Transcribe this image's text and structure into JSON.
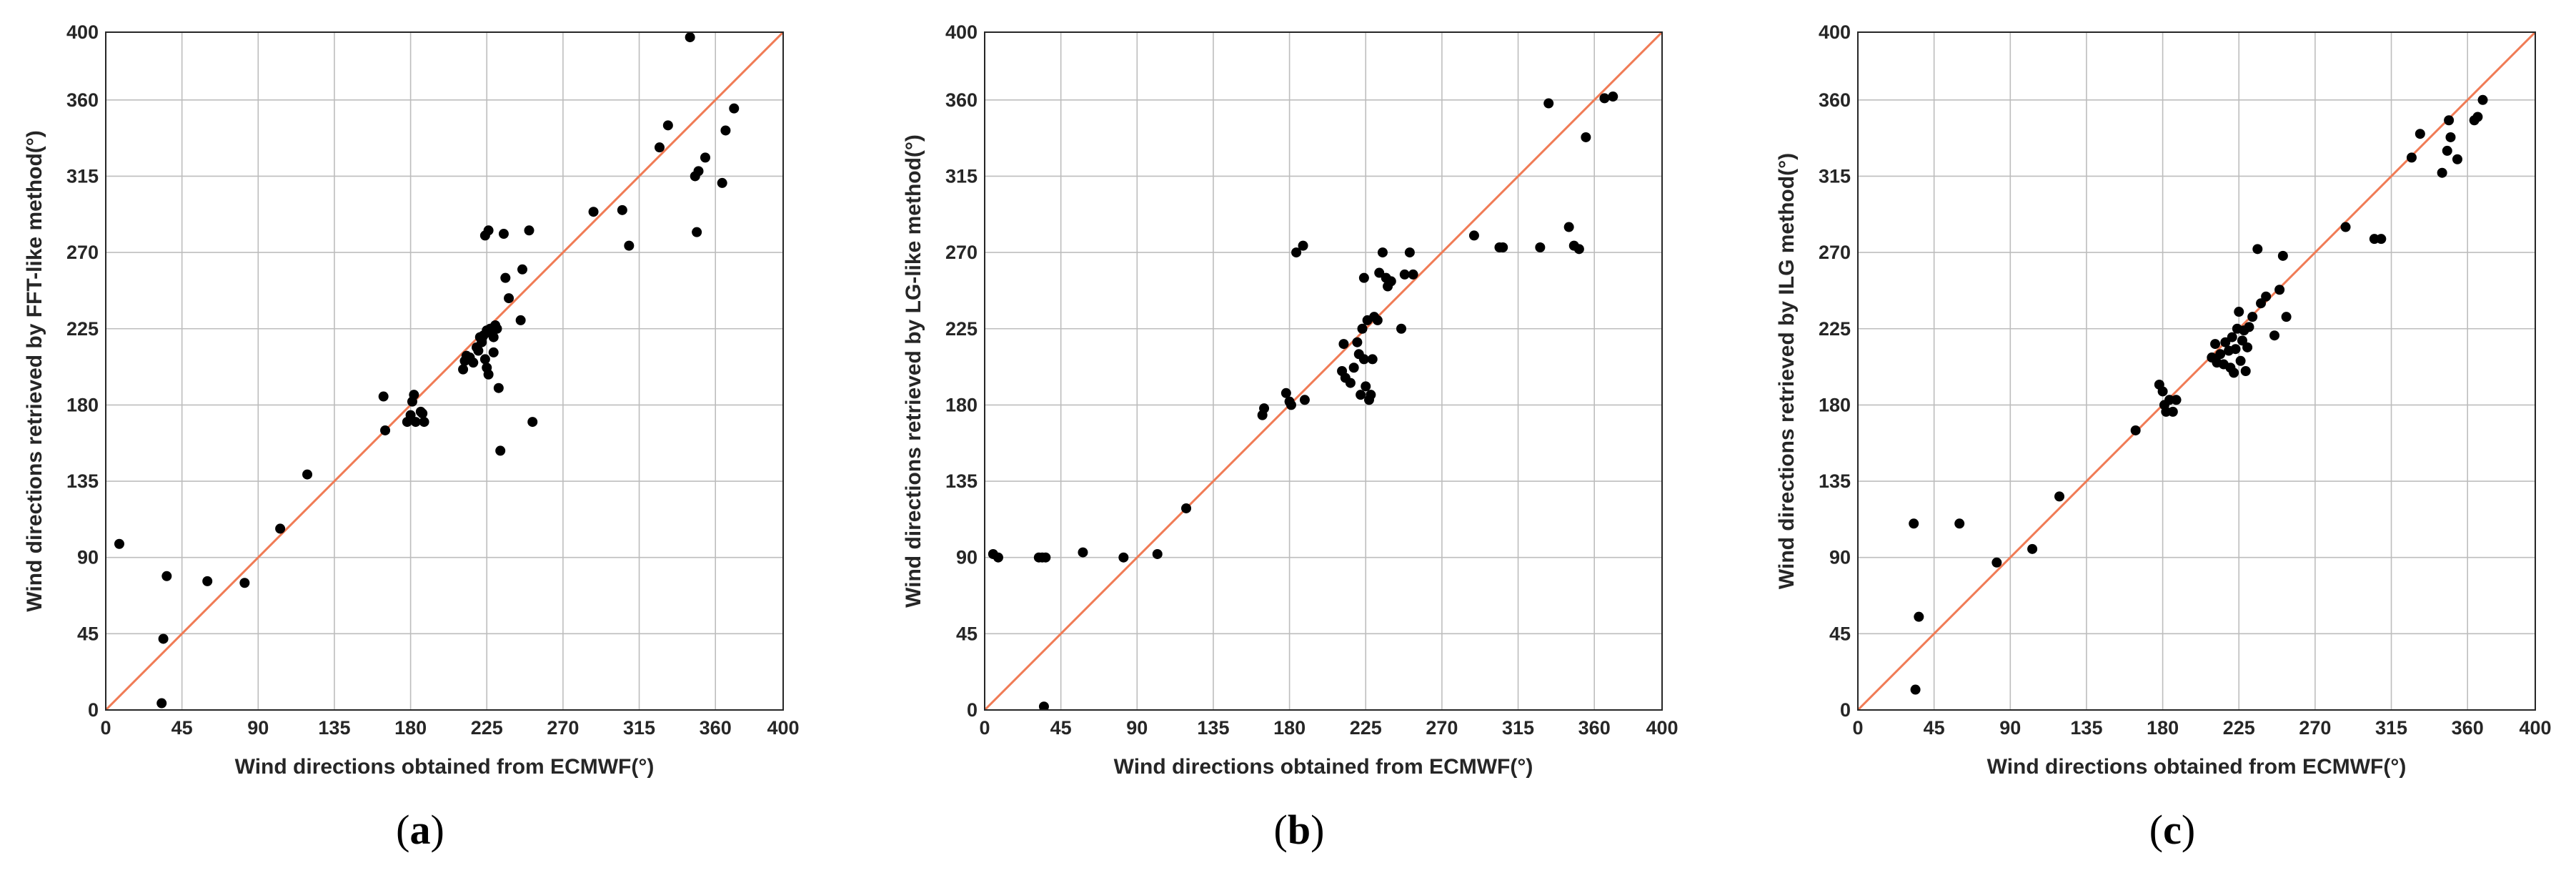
{
  "chart_data": [
    {
      "type": "scatter",
      "panel_label": "a",
      "xlabel": "Wind directions obtained from ECMWF(°)",
      "ylabel": "Wind directions retrieved by FFT-like method(°)",
      "xlim": [
        0,
        400
      ],
      "ylim": [
        0,
        400
      ],
      "xticks": [
        0,
        45,
        90,
        135,
        180,
        225,
        270,
        315,
        360,
        400
      ],
      "yticks": [
        0,
        45,
        90,
        135,
        180,
        225,
        270,
        315,
        360,
        400
      ],
      "grid": true,
      "reference_line": {
        "from": [
          0,
          0
        ],
        "to": [
          400,
          400
        ],
        "color": "#f07b55"
      },
      "marker_color": "#000000",
      "points": [
        [
          8,
          98
        ],
        [
          33,
          4
        ],
        [
          34,
          42
        ],
        [
          36,
          79
        ],
        [
          60,
          76
        ],
        [
          82,
          75
        ],
        [
          103,
          107
        ],
        [
          119,
          139
        ],
        [
          164,
          185
        ],
        [
          165,
          165
        ],
        [
          178,
          170
        ],
        [
          180,
          174
        ],
        [
          181,
          182
        ],
        [
          182,
          186
        ],
        [
          183,
          170
        ],
        [
          186,
          176
        ],
        [
          187,
          175
        ],
        [
          188,
          170
        ],
        [
          211,
          201
        ],
        [
          212,
          206
        ],
        [
          213,
          209
        ],
        [
          215,
          208
        ],
        [
          217,
          205
        ],
        [
          219,
          214
        ],
        [
          220,
          212
        ],
        [
          221,
          220
        ],
        [
          222,
          219
        ],
        [
          222,
          217
        ],
        [
          223,
          221
        ],
        [
          224,
          280
        ],
        [
          224,
          207
        ],
        [
          225,
          224
        ],
        [
          225,
          202
        ],
        [
          226,
          283
        ],
        [
          226,
          198
        ],
        [
          227,
          225
        ],
        [
          228,
          222
        ],
        [
          229,
          220
        ],
        [
          229,
          211
        ],
        [
          230,
          227
        ],
        [
          231,
          225
        ],
        [
          232,
          190
        ],
        [
          233,
          153
        ],
        [
          235,
          281
        ],
        [
          236,
          255
        ],
        [
          238,
          243
        ],
        [
          245,
          230
        ],
        [
          246,
          260
        ],
        [
          250,
          283
        ],
        [
          252,
          170
        ],
        [
          288,
          294
        ],
        [
          305,
          295
        ],
        [
          309,
          274
        ],
        [
          327,
          332
        ],
        [
          332,
          345
        ],
        [
          345,
          397
        ],
        [
          348,
          315
        ],
        [
          349,
          282
        ],
        [
          350,
          318
        ],
        [
          354,
          326
        ],
        [
          364,
          311
        ],
        [
          366,
          342
        ],
        [
          371,
          355
        ]
      ]
    },
    {
      "type": "scatter",
      "panel_label": "b",
      "xlabel": "Wind directions obtained from ECMWF(°)",
      "ylabel": "Wind directions retrieved by LG-like method(°)",
      "xlim": [
        0,
        400
      ],
      "ylim": [
        0,
        400
      ],
      "xticks": [
        0,
        45,
        90,
        135,
        180,
        225,
        270,
        315,
        360,
        400
      ],
      "yticks": [
        0,
        45,
        90,
        135,
        180,
        225,
        270,
        315,
        360,
        400
      ],
      "grid": true,
      "reference_line": {
        "from": [
          0,
          0
        ],
        "to": [
          400,
          400
        ],
        "color": "#f07b55"
      },
      "marker_color": "#000000",
      "points": [
        [
          5,
          92
        ],
        [
          8,
          90
        ],
        [
          32,
          90
        ],
        [
          34,
          90
        ],
        [
          35,
          2
        ],
        [
          36,
          90
        ],
        [
          58,
          93
        ],
        [
          82,
          90
        ],
        [
          102,
          92
        ],
        [
          119,
          119
        ],
        [
          164,
          174
        ],
        [
          165,
          178
        ],
        [
          178,
          187
        ],
        [
          180,
          182
        ],
        [
          181,
          180
        ],
        [
          184,
          270
        ],
        [
          188,
          274
        ],
        [
          189,
          183
        ],
        [
          211,
          200
        ],
        [
          212,
          216
        ],
        [
          213,
          196
        ],
        [
          216,
          193
        ],
        [
          218,
          202
        ],
        [
          220,
          217
        ],
        [
          221,
          210
        ],
        [
          222,
          186
        ],
        [
          223,
          225
        ],
        [
          224,
          207
        ],
        [
          224,
          255
        ],
        [
          225,
          191
        ],
        [
          226,
          230
        ],
        [
          227,
          183
        ],
        [
          228,
          186
        ],
        [
          229,
          207
        ],
        [
          230,
          232
        ],
        [
          232,
          230
        ],
        [
          233,
          258
        ],
        [
          235,
          270
        ],
        [
          237,
          255
        ],
        [
          238,
          250
        ],
        [
          240,
          253
        ],
        [
          246,
          225
        ],
        [
          248,
          257
        ],
        [
          251,
          270
        ],
        [
          253,
          257
        ],
        [
          289,
          280
        ],
        [
          304,
          273
        ],
        [
          306,
          273
        ],
        [
          328,
          273
        ],
        [
          333,
          358
        ],
        [
          345,
          285
        ],
        [
          348,
          274
        ],
        [
          351,
          272
        ],
        [
          355,
          338
        ],
        [
          366,
          361
        ],
        [
          371,
          362
        ]
      ]
    },
    {
      "type": "scatter",
      "panel_label": "c",
      "xlabel": "Wind directions obtained from ECMWF(°)",
      "ylabel": "Wind directions retrieved by ILG method(°)",
      "xlim": [
        0,
        400
      ],
      "ylim": [
        0,
        400
      ],
      "xticks": [
        0,
        45,
        90,
        135,
        180,
        225,
        270,
        315,
        360,
        400
      ],
      "yticks": [
        0,
        45,
        90,
        135,
        180,
        225,
        270,
        315,
        360,
        400
      ],
      "grid": true,
      "reference_line": {
        "from": [
          0,
          0
        ],
        "to": [
          400,
          400
        ],
        "color": "#f07b55"
      },
      "marker_color": "#000000",
      "points": [
        [
          33,
          110
        ],
        [
          34,
          12
        ],
        [
          36,
          55
        ],
        [
          60,
          110
        ],
        [
          82,
          87
        ],
        [
          103,
          95
        ],
        [
          119,
          126
        ],
        [
          164,
          165
        ],
        [
          178,
          192
        ],
        [
          180,
          188
        ],
        [
          181,
          180
        ],
        [
          182,
          176
        ],
        [
          184,
          183
        ],
        [
          186,
          176
        ],
        [
          188,
          183
        ],
        [
          209,
          208
        ],
        [
          211,
          216
        ],
        [
          212,
          205
        ],
        [
          214,
          210
        ],
        [
          216,
          204
        ],
        [
          217,
          217
        ],
        [
          219,
          212
        ],
        [
          220,
          202
        ],
        [
          221,
          220
        ],
        [
          222,
          199
        ],
        [
          223,
          213
        ],
        [
          224,
          225
        ],
        [
          225,
          235
        ],
        [
          226,
          206
        ],
        [
          227,
          218
        ],
        [
          228,
          224
        ],
        [
          229,
          200
        ],
        [
          230,
          214
        ],
        [
          231,
          226
        ],
        [
          233,
          232
        ],
        [
          236,
          272
        ],
        [
          238,
          240
        ],
        [
          241,
          244
        ],
        [
          246,
          221
        ],
        [
          249,
          248
        ],
        [
          251,
          268
        ],
        [
          253,
          232
        ],
        [
          288,
          285
        ],
        [
          305,
          278
        ],
        [
          309,
          278
        ],
        [
          327,
          326
        ],
        [
          332,
          340
        ],
        [
          345,
          317
        ],
        [
          348,
          330
        ],
        [
          349,
          348
        ],
        [
          350,
          338
        ],
        [
          354,
          325
        ],
        [
          364,
          348
        ],
        [
          366,
          350
        ],
        [
          369,
          360
        ]
      ]
    }
  ]
}
